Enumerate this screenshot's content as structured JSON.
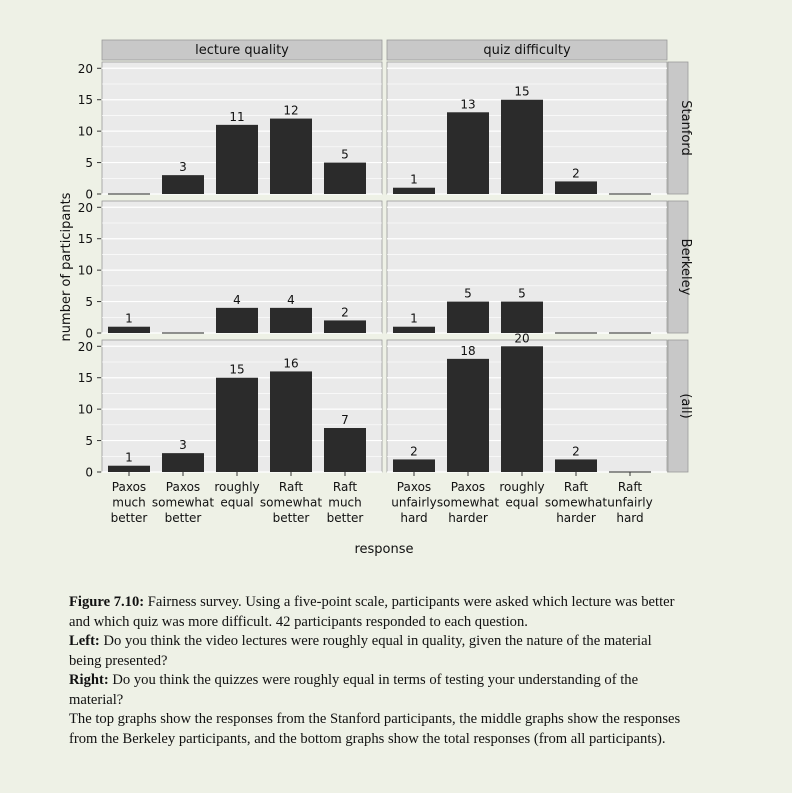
{
  "chart_data": {
    "type": "bar",
    "facet_columns": [
      "lecture quality",
      "quiz difficulty"
    ],
    "facet_rows": [
      "Stanford",
      "Berkeley",
      "(all)"
    ],
    "xlabel": "response",
    "ylabel": "number of participants",
    "ylim": [
      0,
      21
    ],
    "yticks": [
      0,
      5,
      10,
      15,
      20
    ],
    "grid": true,
    "categories": {
      "lecture quality": [
        [
          "Paxos",
          "much",
          "better"
        ],
        [
          "Paxos",
          "somewhat",
          "better"
        ],
        [
          "roughly",
          "equal"
        ],
        [
          "Raft",
          "somewhat",
          "better"
        ],
        [
          "Raft",
          "much",
          "better"
        ]
      ],
      "quiz difficulty": [
        [
          "Paxos",
          "unfairly",
          "hard"
        ],
        [
          "Paxos",
          "somewhat",
          "harder"
        ],
        [
          "roughly",
          "equal"
        ],
        [
          "Raft",
          "somewhat",
          "harder"
        ],
        [
          "Raft",
          "unfairly",
          "hard"
        ]
      ]
    },
    "values": {
      "lecture quality": {
        "Stanford": [
          0,
          3,
          11,
          12,
          5
        ],
        "Berkeley": [
          1,
          0,
          4,
          4,
          2
        ],
        "(all)": [
          1,
          3,
          15,
          16,
          7
        ]
      },
      "quiz difficulty": {
        "Stanford": [
          1,
          13,
          15,
          2,
          0
        ],
        "Berkeley": [
          1,
          5,
          5,
          0,
          0
        ],
        "(all)": [
          2,
          18,
          20,
          2,
          0
        ]
      }
    },
    "bar_color": "#2b2b2b",
    "strip_color": "#c8c8c8",
    "panel_color": "#eaeaea",
    "grid_color": "#ffffff"
  },
  "caption": {
    "label": "Figure 7.10:",
    "intro": "Fairness survey. Using a five-point scale, participants were asked which lecture was better and which quiz was more difficult. 42 participants responded to each question.",
    "left_label": "Left:",
    "left_text": "Do you think the video lectures were roughly equal in quality, given the nature of the material being presented?",
    "right_label": "Right:",
    "right_text": "Do you think the quizzes were roughly equal in terms of testing your understanding of the material?",
    "closing": "The top graphs show the responses from the Stanford participants, the middle graphs show the responses from the Berkeley participants, and the bottom graphs show the total responses (from all participants)."
  }
}
